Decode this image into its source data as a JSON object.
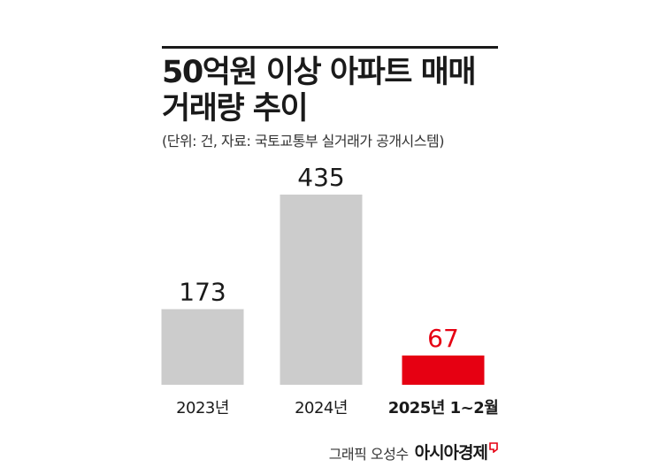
{
  "header": {
    "title_line1": "50억원 이상 아파트 매매",
    "title_line2": "거래량 추이",
    "subtitle": "(단위: 건, 자료: 국토교통부 실거래가 공개시스템)"
  },
  "chart_data": {
    "type": "bar",
    "title": "50억원 이상 아파트 매매 거래량 추이",
    "subtitle": "(단위: 건, 자료: 국토교통부 실거래가 공개시스템)",
    "categories": [
      "2023년",
      "2024년",
      "2025년 1~2월"
    ],
    "values": [
      173,
      435,
      67
    ],
    "value_labels": [
      "173",
      "435",
      "67"
    ],
    "highlight_index": 2,
    "colors": {
      "default": "#cccccc",
      "highlight": "#e60012",
      "text": "#1a1a1a"
    },
    "grid": false,
    "legend": "none",
    "ylim": [
      0,
      435
    ]
  },
  "footer": {
    "credit_label": "그래픽 오성수",
    "brand": "아시아경제",
    "brand_color": "#e60012"
  }
}
